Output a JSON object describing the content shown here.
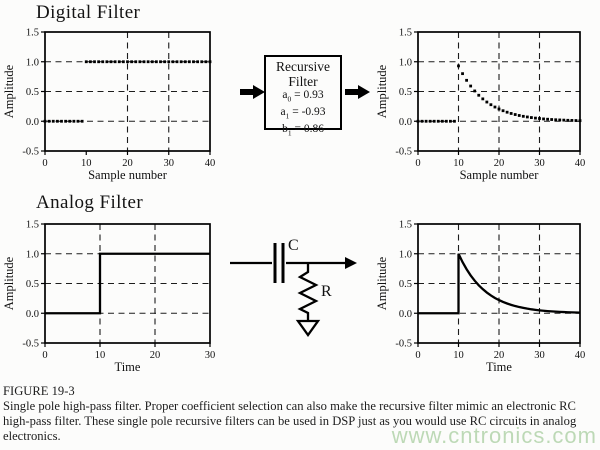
{
  "sections": {
    "digital": {
      "title": "Digital Filter"
    },
    "analog": {
      "title": "Analog Filter"
    }
  },
  "recursive_box": {
    "title_line1": "Recursive",
    "title_line2": "Filter",
    "coefficients": [
      {
        "base": "a",
        "sub": "0",
        "eq": "=",
        "value": "0.93"
      },
      {
        "base": "a",
        "sub": "1",
        "eq": "=",
        "value": "-0.93"
      },
      {
        "base": "b",
        "sub": "1",
        "eq": "=",
        "value": "0.86"
      }
    ]
  },
  "circuit": {
    "capacitor_label": "C",
    "resistor_label": "R"
  },
  "caption": {
    "figure_label": "FIGURE 19-3",
    "text": "Single pole high-pass filter.  Proper coefficient selection can also make the recursive filter mimic an electronic RC high-pass filter.  These single pole recursive filters can be used in DSP just as you would use RC circuits in analog electronics."
  },
  "watermark": {
    "text": "www.cntronics.com",
    "color": "#a3cb9a"
  },
  "chart_data": [
    {
      "id": "digital-input",
      "type": "scatter",
      "title": "",
      "xlabel": "Sample number",
      "ylabel": "Amplitude",
      "xlim": [
        0,
        40
      ],
      "ylim": [
        -0.5,
        1.5
      ],
      "xticks": [
        0,
        10,
        20,
        30,
        40
      ],
      "yticks": [
        -0.5,
        0.0,
        0.5,
        1.0,
        1.5
      ],
      "grid_x": [
        20,
        30
      ],
      "grid_y": [
        0.0,
        0.5,
        1.0
      ],
      "legend": "none",
      "x": [
        0,
        1,
        2,
        3,
        4,
        5,
        6,
        7,
        8,
        9,
        10,
        11,
        12,
        13,
        14,
        15,
        16,
        17,
        18,
        19,
        20,
        21,
        22,
        23,
        24,
        25,
        26,
        27,
        28,
        29,
        30,
        31,
        32,
        33,
        34,
        35,
        36,
        37,
        38,
        39,
        40
      ],
      "y": [
        0,
        0,
        0,
        0,
        0,
        0,
        0,
        0,
        0,
        0,
        1,
        1,
        1,
        1,
        1,
        1,
        1,
        1,
        1,
        1,
        1,
        1,
        1,
        1,
        1,
        1,
        1,
        1,
        1,
        1,
        1,
        1,
        1,
        1,
        1,
        1,
        1,
        1,
        1,
        1,
        1
      ]
    },
    {
      "id": "digital-output",
      "type": "scatter",
      "title": "",
      "xlabel": "Sample number",
      "ylabel": "Amplitude",
      "xlim": [
        0,
        40
      ],
      "ylim": [
        -0.5,
        1.5
      ],
      "xticks": [
        0,
        10,
        20,
        30,
        40
      ],
      "yticks": [
        -0.5,
        0.0,
        0.5,
        1.0,
        1.5
      ],
      "grid_x": [
        10,
        20,
        30
      ],
      "grid_y": [
        0.0,
        0.5,
        1.0
      ],
      "legend": "none",
      "x": [
        0,
        1,
        2,
        3,
        4,
        5,
        6,
        7,
        8,
        9,
        10,
        11,
        12,
        13,
        14,
        15,
        16,
        17,
        18,
        19,
        20,
        21,
        22,
        23,
        24,
        25,
        26,
        27,
        28,
        29,
        30,
        31,
        32,
        33,
        34,
        35,
        36,
        37,
        38,
        39,
        40
      ],
      "y": [
        0,
        0,
        0,
        0,
        0,
        0,
        0,
        0,
        0,
        0,
        0.93,
        0.8,
        0.688,
        0.592,
        0.509,
        0.437,
        0.376,
        0.323,
        0.278,
        0.239,
        0.206,
        0.177,
        0.152,
        0.131,
        0.113,
        0.097,
        0.083,
        0.072,
        0.062,
        0.053,
        0.046,
        0.039,
        0.034,
        0.029,
        0.025,
        0.022,
        0.019,
        0.016,
        0.014,
        0.012,
        0.01
      ]
    },
    {
      "id": "analog-input",
      "type": "line",
      "title": "",
      "xlabel": "Time",
      "ylabel": "Amplitude",
      "xlim": [
        0,
        30
      ],
      "ylim": [
        -0.5,
        1.5
      ],
      "xticks": [
        0,
        10,
        20,
        30
      ],
      "yticks": [
        -0.5,
        0.0,
        0.5,
        1.0,
        1.5
      ],
      "grid_x": [
        10,
        20
      ],
      "grid_y": [
        0.0,
        0.5,
        1.0
      ],
      "legend": "none",
      "x": [
        0,
        10,
        10,
        30
      ],
      "y": [
        0,
        0,
        1,
        1
      ]
    },
    {
      "id": "analog-output",
      "type": "line",
      "title": "",
      "xlabel": "Time",
      "ylabel": "Amplitude",
      "xlim": [
        0,
        40
      ],
      "ylim": [
        -0.5,
        1.5
      ],
      "xticks": [
        0,
        10,
        20,
        30,
        40
      ],
      "yticks": [
        -0.5,
        0.0,
        0.5,
        1.0,
        1.5
      ],
      "grid_x": [
        10,
        20,
        30
      ],
      "grid_y": [
        0.0,
        0.5,
        1.0
      ],
      "legend": "none",
      "x": [
        0,
        10,
        10,
        11,
        12,
        13,
        14,
        15,
        16,
        17,
        18,
        19,
        20,
        21,
        22,
        23,
        24,
        25,
        26,
        27,
        28,
        29,
        30,
        31,
        32,
        33,
        34,
        35,
        36,
        37,
        38,
        39,
        40
      ],
      "y": [
        0,
        0,
        1,
        0.86,
        0.74,
        0.636,
        0.547,
        0.47,
        0.405,
        0.348,
        0.299,
        0.257,
        0.221,
        0.19,
        0.164,
        0.141,
        0.121,
        0.104,
        0.09,
        0.077,
        0.066,
        0.057,
        0.049,
        0.042,
        0.036,
        0.031,
        0.027,
        0.023,
        0.02,
        0.017,
        0.015,
        0.013,
        0.011
      ]
    }
  ]
}
